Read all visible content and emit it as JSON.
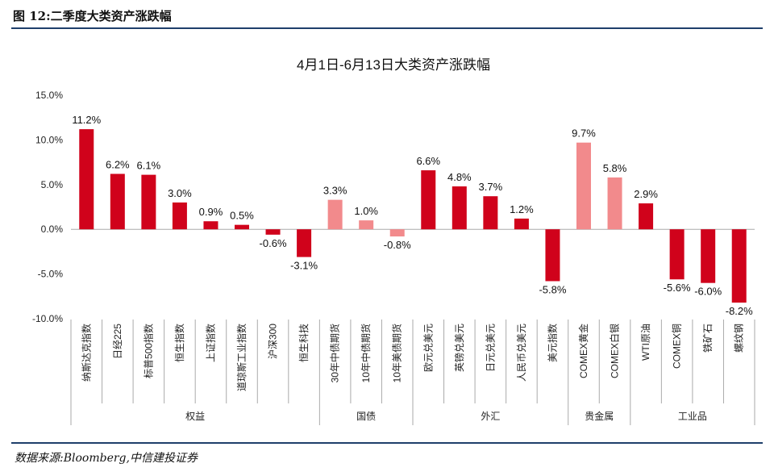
{
  "figure": {
    "title": "图 12:二季度大类资产涨跌幅",
    "source": "数据来源:Bloomberg,中信建投证券"
  },
  "colors": {
    "bar_primary": "#d0021b",
    "bar_light": "#f28a8c",
    "axis": "#aaaaaa",
    "rule": "#1f3f6b"
  },
  "chart_data": {
    "type": "bar",
    "title": "4月1日-6月13日大类资产涨跌幅",
    "ylim": [
      -10,
      15
    ],
    "yticks": [
      "15.0%",
      "10.0%",
      "5.0%",
      "0.0%",
      "-5.0%",
      "-10.0%"
    ],
    "ytick_values": [
      15,
      10,
      5,
      0,
      -5,
      -10
    ],
    "grid": false,
    "categories": [
      "纳斯达克指数",
      "日经225",
      "标普500指数",
      "恒生指数",
      "上证指数",
      "道琼斯工业指数",
      "沪深300",
      "恒生科技",
      "30年中债期货",
      "10年中债期货",
      "10年美债期货",
      "欧元兑美元",
      "英镑兑美元",
      "日元兑美元",
      "人民币兑美元",
      "美元指数",
      "COMEX黄金",
      "COMEX白银",
      "WTI原油",
      "COMEX铜",
      "铁矿石",
      "螺纹钢"
    ],
    "values": [
      11.2,
      6.2,
      6.1,
      3.0,
      0.9,
      0.5,
      -0.6,
      -3.1,
      3.3,
      1.0,
      -0.8,
      6.6,
      4.8,
      3.7,
      1.2,
      -5.8,
      9.7,
      5.8,
      2.9,
      -5.6,
      -6.0,
      -8.2
    ],
    "value_labels": [
      "11.2%",
      "6.2%",
      "6.1%",
      "3.0%",
      "0.9%",
      "0.5%",
      "-0.6%",
      "-3.1%",
      "3.3%",
      "1.0%",
      "-0.8%",
      "6.6%",
      "4.8%",
      "3.7%",
      "1.2%",
      "-5.8%",
      "9.7%",
      "5.8%",
      "2.9%",
      "-5.6%",
      "-6.0%",
      "-8.2%"
    ],
    "light_bars": [
      8,
      9,
      10,
      16,
      17
    ],
    "groups": [
      {
        "name": "权益",
        "start": 0,
        "end": 7
      },
      {
        "name": "国债",
        "start": 8,
        "end": 10
      },
      {
        "name": "外汇",
        "start": 11,
        "end": 15
      },
      {
        "name": "贵金属",
        "start": 16,
        "end": 17
      },
      {
        "name": "工业品",
        "start": 18,
        "end": 21
      }
    ]
  }
}
